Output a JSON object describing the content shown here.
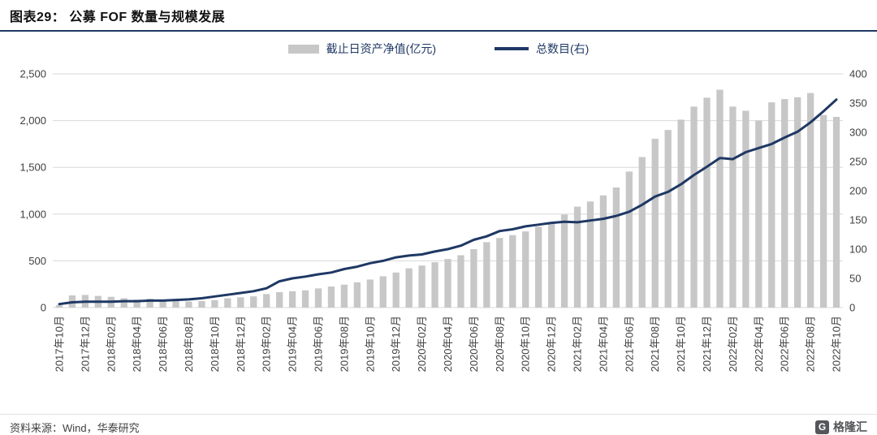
{
  "header": {
    "title": "图表29： 公募 FOF 数量与规模发展"
  },
  "colors": {
    "bar": "#c7c7c7",
    "line": "#1f3864",
    "grid": "#d9d9d9",
    "axis_text": "#404040",
    "legend_text": "#1f3864",
    "accent": "#1f3864"
  },
  "chart_data": {
    "type": "bar",
    "subtype": "bar-line-combo",
    "title": "公募 FOF 数量与规模发展",
    "grid": "horizontal",
    "legend_position": "top-center",
    "label_every": 2,
    "categories": [
      "2017年10月",
      "2017年11月",
      "2017年12月",
      "2018年01月",
      "2018年02月",
      "2018年03月",
      "2018年04月",
      "2018年05月",
      "2018年06月",
      "2018年07月",
      "2018年08月",
      "2018年09月",
      "2018年10月",
      "2018年11月",
      "2018年12月",
      "2019年01月",
      "2019年02月",
      "2019年03月",
      "2019年04月",
      "2019年05月",
      "2019年06月",
      "2019年07月",
      "2019年08月",
      "2019年09月",
      "2019年10月",
      "2019年11月",
      "2019年12月",
      "2020年01月",
      "2020年02月",
      "2020年03月",
      "2020年04月",
      "2020年05月",
      "2020年06月",
      "2020年07月",
      "2020年08月",
      "2020年09月",
      "2020年10月",
      "2020年11月",
      "2020年12月",
      "2021年01月",
      "2021年02月",
      "2021年03月",
      "2021年04月",
      "2021年05月",
      "2021年06月",
      "2021年07月",
      "2021年08月",
      "2021年09月",
      "2021年10月",
      "2021年11月",
      "2021年12月",
      "2022年01月",
      "2022年02月",
      "2022年03月",
      "2022年04月",
      "2022年05月",
      "2022年06月",
      "2022年07月",
      "2022年08月",
      "2022年09月",
      "2022年10月"
    ],
    "series": [
      {
        "name": "截止日资产净值(亿元)",
        "type": "bar",
        "axis": "left",
        "color": "#c7c7c7",
        "values": [
          25,
          130,
          135,
          125,
          115,
          100,
          85,
          95,
          85,
          70,
          65,
          70,
          80,
          100,
          110,
          120,
          145,
          165,
          175,
          185,
          205,
          225,
          245,
          270,
          300,
          335,
          375,
          420,
          450,
          485,
          520,
          560,
          625,
          700,
          745,
          775,
          815,
          865,
          910,
          995,
          1080,
          1135,
          1200,
          1285,
          1455,
          1610,
          1805,
          1900,
          2010,
          2150,
          2245,
          2330,
          2150,
          2105,
          2000,
          2195,
          2230,
          2250,
          2295,
          2060,
          2040
        ]
      },
      {
        "name": "总数目(右)",
        "type": "line",
        "axis": "right",
        "color": "#1f3864",
        "values": [
          6,
          9,
          10,
          10,
          10,
          11,
          11,
          12,
          12,
          13,
          14,
          16,
          19,
          22,
          25,
          28,
          33,
          45,
          50,
          53,
          57,
          60,
          66,
          70,
          76,
          80,
          86,
          89,
          91,
          96,
          100,
          106,
          116,
          122,
          131,
          134,
          139,
          142,
          145,
          147,
          146,
          149,
          152,
          157,
          164,
          176,
          190,
          198,
          211,
          227,
          241,
          256,
          254,
          266,
          273,
          280,
          291,
          301,
          317,
          336,
          356
        ]
      }
    ],
    "left_axis": {
      "min": 0,
      "max": 2500,
      "step": 500,
      "tick_labels": [
        "0",
        "500",
        "1,000",
        "1,500",
        "2,000",
        "2,500"
      ]
    },
    "right_axis": {
      "min": 0,
      "max": 400,
      "step": 50
    }
  },
  "footer": {
    "source": "资料来源：Wind，华泰研究",
    "logo_letter": "G",
    "logo_text": "格隆汇"
  }
}
